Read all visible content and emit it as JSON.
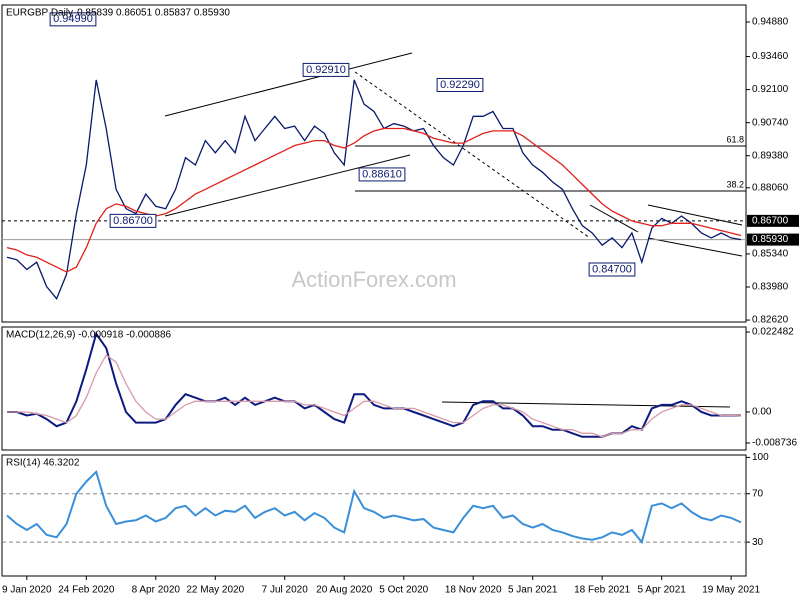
{
  "chart_data": [
    {
      "type": "line",
      "title": "EURGBP Daily",
      "subtitle": "0.85839 0.86051 0.85837 0.85930",
      "watermark": "ActionForex.com",
      "categories": [
        null,
        null,
        "9 Jan 2020",
        null,
        null,
        null,
        null,
        null,
        "24 Feb 2020",
        null,
        null,
        null,
        null,
        null,
        null,
        "8 Apr 2020",
        null,
        null,
        null,
        null,
        null,
        "22 May 2020",
        null,
        null,
        null,
        null,
        null,
        null,
        "7 Jul 2020",
        null,
        null,
        null,
        null,
        null,
        "20 Aug 2020",
        null,
        null,
        null,
        null,
        null,
        "5 Oct 2020",
        null,
        null,
        null,
        null,
        null,
        null,
        "18 Nov 2020",
        null,
        null,
        null,
        null,
        null,
        "5 Jan 2021",
        null,
        null,
        null,
        null,
        null,
        null,
        "18 Feb 2021",
        null,
        null,
        null,
        null,
        null,
        "5 Apr 2021",
        null,
        null,
        null,
        null,
        null,
        null,
        "19 May 2021",
        null
      ],
      "series": [
        {
          "color": "#0a1a6b",
          "values": [
            0.852,
            0.851,
            0.847,
            0.85,
            0.84,
            0.835,
            0.845,
            0.87,
            0.89,
            0.925,
            0.905,
            0.88,
            0.872,
            0.87,
            0.878,
            0.873,
            0.872,
            0.88,
            0.893,
            0.89,
            0.9,
            0.895,
            0.9,
            0.895,
            0.91,
            0.9,
            0.905,
            0.91,
            0.905,
            0.906,
            0.9,
            0.906,
            0.903,
            0.895,
            0.89,
            0.925,
            0.915,
            0.912,
            0.905,
            0.907,
            0.906,
            0.904,
            0.905,
            0.898,
            0.893,
            0.89,
            0.898,
            0.91,
            0.91,
            0.912,
            0.905,
            0.905,
            0.895,
            0.89,
            0.887,
            0.883,
            0.88,
            0.872,
            0.865,
            0.862,
            0.857,
            0.86,
            0.856,
            0.862,
            0.85,
            0.864,
            0.868,
            0.866,
            0.869,
            0.866,
            0.862,
            0.86,
            0.862,
            0.86,
            0.8593
          ]
        },
        {
          "color": "#e0201b",
          "values": [
            0.856,
            0.855,
            0.853,
            0.852,
            0.85,
            0.848,
            0.846,
            0.848,
            0.856,
            0.866,
            0.872,
            0.874,
            0.873,
            0.871,
            0.87,
            0.869,
            0.87,
            0.872,
            0.875,
            0.878,
            0.88,
            0.882,
            0.884,
            0.886,
            0.888,
            0.89,
            0.892,
            0.894,
            0.896,
            0.898,
            0.899,
            0.9,
            0.9,
            0.898,
            0.897,
            0.899,
            0.902,
            0.904,
            0.905,
            0.905,
            0.905,
            0.904,
            0.903,
            0.901,
            0.9,
            0.899,
            0.899,
            0.901,
            0.903,
            0.904,
            0.904,
            0.904,
            0.902,
            0.899,
            0.896,
            0.893,
            0.89,
            0.886,
            0.882,
            0.878,
            0.874,
            0.871,
            0.869,
            0.867,
            0.866,
            0.865,
            0.865,
            0.866,
            0.866,
            0.866,
            0.865,
            0.864,
            0.863,
            0.862,
            0.861
          ]
        }
      ],
      "ylim": [
        0.8254,
        0.9558
      ],
      "yticks": [
        {
          "value": 0.9488,
          "label": "0.94880"
        },
        {
          "value": 0.9346,
          "label": "0.93460"
        },
        {
          "value": 0.921,
          "label": "0.92100"
        },
        {
          "value": 0.9074,
          "label": "0.90740"
        },
        {
          "value": 0.8938,
          "label": "0.89380"
        },
        {
          "value": 0.8806,
          "label": "0.88060"
        },
        {
          "value": 0.8534,
          "label": "0.85340"
        },
        {
          "value": 0.8398,
          "label": "0.83980"
        },
        {
          "value": 0.8262,
          "label": "0.82620"
        }
      ],
      "price_lines": [
        {
          "value": 0.867,
          "label": "0.86700",
          "style": "dashed"
        },
        {
          "value": 0.8593,
          "label": "0.85930",
          "style": "solid"
        }
      ],
      "annotations": [
        {
          "value": 0.9499,
          "label": "0.94990"
        },
        {
          "value": 0.9291,
          "label": "0.92910"
        },
        {
          "value": 0.9229,
          "label": "0.92290"
        },
        {
          "value": 0.8861,
          "label": "0.88610"
        },
        {
          "value": 0.867,
          "label": "0.86700"
        },
        {
          "value": 0.847,
          "label": "0.84700"
        }
      ],
      "fib_levels": [
        {
          "ratio": 61.8,
          "price": 0.8978
        },
        {
          "ratio": 38.2,
          "price": 0.8793
        }
      ]
    },
    {
      "type": "line",
      "title": "MACD(12,26,9) -0.000918 -0.000886",
      "series": [
        {
          "color": "#0d1a80",
          "values": [
            0,
            0,
            -0.001,
            -0.0005,
            -0.002,
            -0.004,
            -0.003,
            0.003,
            0.012,
            0.022,
            0.018,
            0.008,
            0,
            -0.003,
            -0.003,
            -0.003,
            -0.002,
            0.002,
            0.005,
            0.004,
            0.003,
            0.003,
            0.004,
            0.002,
            0.004,
            0.002,
            0.003,
            0.004,
            0.003,
            0.003,
            0.001,
            0.002,
            0,
            -0.002,
            -0.003,
            0.005,
            0.005,
            0.002,
            0.001,
            0.001,
            0.001,
            0,
            -0.001,
            -0.002,
            -0.003,
            -0.004,
            -0.003,
            0.002,
            0.003,
            0.003,
            0.001,
            0.001,
            -0.001,
            -0.004,
            -0.004,
            -0.005,
            -0.005,
            -0.006,
            -0.007,
            -0.007,
            -0.007,
            -0.006,
            -0.006,
            -0.004,
            -0.005,
            0.001,
            0.002,
            0.002,
            0.003,
            0.002,
            0,
            -0.001,
            -0.001,
            -0.001,
            -0.000918
          ]
        },
        {
          "color": "#d89aa8",
          "values": [
            0,
            0,
            0,
            -0.0005,
            -0.001,
            -0.002,
            -0.003,
            -0.001,
            0.004,
            0.011,
            0.016,
            0.014,
            0.008,
            0.003,
            0,
            -0.002,
            -0.002,
            0,
            0.002,
            0.003,
            0.003,
            0.003,
            0.003,
            0.003,
            0.003,
            0.003,
            0.003,
            0.003,
            0.003,
            0.003,
            0.002,
            0.002,
            0.001,
            0,
            -0.001,
            0.001,
            0.003,
            0.003,
            0.002,
            0.001,
            0.001,
            0.001,
            0,
            -0.001,
            -0.002,
            -0.003,
            -0.003,
            -0.001,
            0.001,
            0.002,
            0.002,
            0.001,
            0,
            -0.002,
            -0.003,
            -0.004,
            -0.005,
            -0.005,
            -0.006,
            -0.006,
            -0.007,
            -0.006,
            -0.006,
            -0.005,
            -0.005,
            -0.002,
            0,
            0.001,
            0.002,
            0.002,
            0.001,
            0,
            -0.001,
            -0.001,
            -0.000886
          ]
        }
      ],
      "ylim": [
        -0.0107,
        0.0239
      ],
      "yticks": [
        0.022482,
        {
          "value": 0,
          "label": "0.00"
        },
        -0.008736
      ]
    },
    {
      "type": "line",
      "title": "RSI(14) 46.3202",
      "series": [
        {
          "color": "#3a8fd8",
          "values": [
            52,
            45,
            40,
            45,
            36,
            34,
            45,
            70,
            80,
            88,
            60,
            45,
            47,
            48,
            52,
            47,
            50,
            58,
            60,
            52,
            58,
            52,
            56,
            55,
            60,
            50,
            55,
            58,
            52,
            55,
            48,
            54,
            50,
            42,
            38,
            72,
            58,
            55,
            50,
            52,
            50,
            48,
            49,
            42,
            40,
            38,
            50,
            60,
            58,
            60,
            50,
            52,
            45,
            42,
            45,
            40,
            38,
            35,
            33,
            32,
            34,
            38,
            36,
            40,
            30,
            60,
            62,
            58,
            62,
            55,
            50,
            48,
            52,
            50,
            46.3202
          ]
        }
      ],
      "ylim": [
        2,
        102
      ],
      "yticks": [
        100,
        70,
        30
      ],
      "levels": [
        70,
        30
      ]
    }
  ]
}
